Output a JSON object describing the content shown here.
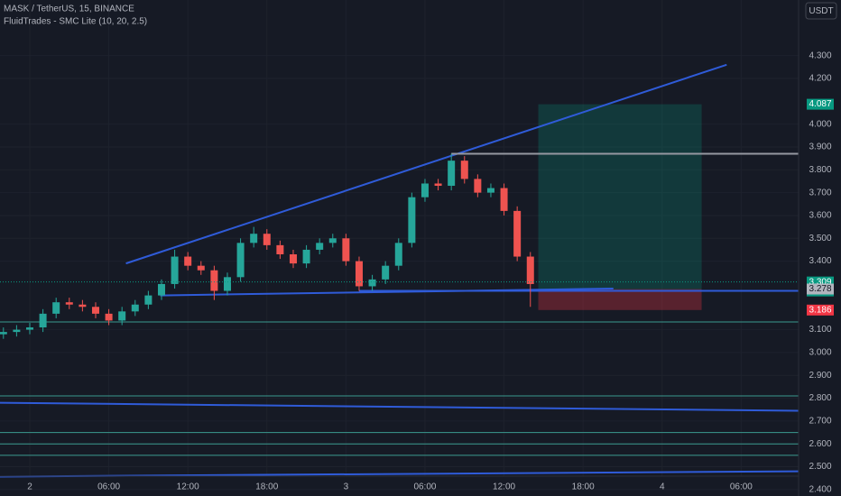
{
  "header": {
    "symbol": "MASK / TetherUS, 15, BINANCE",
    "indicator": "FluidTrades - SMC Lite  (10, 20, 2.5)",
    "currency": "USDT"
  },
  "chart_data": {
    "type": "candlestick",
    "x": [
      -2,
      -1,
      0,
      1,
      2,
      3,
      4,
      5,
      6,
      7,
      8,
      9,
      10,
      11,
      12,
      13,
      14,
      15,
      16,
      17,
      18,
      19,
      20,
      21,
      22,
      23,
      24,
      25,
      26,
      27,
      28,
      29,
      30,
      31,
      32,
      33,
      34,
      35,
      36,
      37,
      38
    ],
    "open": [
      3.08,
      3.09,
      3.1,
      3.11,
      3.17,
      3.22,
      3.21,
      3.2,
      3.17,
      3.14,
      3.18,
      3.21,
      3.25,
      3.3,
      3.42,
      3.38,
      3.36,
      3.27,
      3.33,
      3.48,
      3.52,
      3.47,
      3.43,
      3.39,
      3.45,
      3.48,
      3.5,
      3.4,
      3.29,
      3.32,
      3.38,
      3.48,
      3.68,
      3.74,
      3.73,
      3.84,
      3.76,
      3.7,
      3.72,
      3.62,
      3.42
    ],
    "high": [
      3.11,
      3.12,
      3.13,
      3.19,
      3.24,
      3.24,
      3.23,
      3.22,
      3.19,
      3.2,
      3.23,
      3.27,
      3.32,
      3.45,
      3.44,
      3.4,
      3.38,
      3.35,
      3.5,
      3.55,
      3.54,
      3.49,
      3.45,
      3.47,
      3.5,
      3.52,
      3.52,
      3.42,
      3.34,
      3.4,
      3.5,
      3.7,
      3.76,
      3.76,
      3.87,
      3.86,
      3.78,
      3.74,
      3.74,
      3.64,
      3.44
    ],
    "low": [
      3.06,
      3.07,
      3.08,
      3.09,
      3.15,
      3.19,
      3.18,
      3.15,
      3.12,
      3.12,
      3.16,
      3.19,
      3.23,
      3.28,
      3.36,
      3.34,
      3.23,
      3.25,
      3.31,
      3.46,
      3.45,
      3.41,
      3.37,
      3.37,
      3.43,
      3.46,
      3.38,
      3.27,
      3.27,
      3.3,
      3.36,
      3.46,
      3.66,
      3.71,
      3.71,
      3.74,
      3.68,
      3.68,
      3.6,
      3.4,
      3.2
    ],
    "close": [
      3.09,
      3.1,
      3.11,
      3.17,
      3.22,
      3.21,
      3.2,
      3.17,
      3.14,
      3.18,
      3.21,
      3.25,
      3.3,
      3.42,
      3.38,
      3.36,
      3.27,
      3.33,
      3.48,
      3.52,
      3.47,
      3.43,
      3.39,
      3.45,
      3.48,
      3.5,
      3.4,
      3.29,
      3.32,
      3.38,
      3.48,
      3.68,
      3.74,
      3.73,
      3.84,
      3.76,
      3.7,
      3.72,
      3.62,
      3.42,
      3.3
    ],
    "up_color": "#26a69a",
    "down_color": "#ef5350",
    "xlim": [
      -2.26,
      58.36
    ],
    "ylim": [
      2.3719,
      4.5434
    ],
    "xticks": [
      {
        "value": 0,
        "label": "2"
      },
      {
        "value": 6,
        "label": "06:00"
      },
      {
        "value": 12,
        "label": "12:00"
      },
      {
        "value": 18,
        "label": "18:00"
      },
      {
        "value": 24,
        "label": "3"
      },
      {
        "value": 30,
        "label": "06:00"
      },
      {
        "value": 36,
        "label": "12:00"
      },
      {
        "value": 42,
        "label": "18:00"
      },
      {
        "value": 48,
        "label": "4"
      },
      {
        "value": 54,
        "label": "06:00"
      }
    ],
    "yticks": [
      {
        "value": 4.3,
        "label": "4.300"
      },
      {
        "value": 4.2,
        "label": "4.200"
      },
      {
        "value": 4.0,
        "label": "4.000"
      },
      {
        "value": 3.9,
        "label": "3.900"
      },
      {
        "value": 3.8,
        "label": "3.800"
      },
      {
        "value": 3.7,
        "label": "3.700"
      },
      {
        "value": 3.6,
        "label": "3.600"
      },
      {
        "value": 3.5,
        "label": "3.500"
      },
      {
        "value": 3.4,
        "label": "3.400"
      },
      {
        "value": 3.1,
        "label": "3.100"
      },
      {
        "value": 3.0,
        "label": "3.000"
      },
      {
        "value": 2.9,
        "label": "2.900"
      },
      {
        "value": 2.8,
        "label": "2.800"
      },
      {
        "value": 2.7,
        "label": "2.700"
      },
      {
        "value": 2.6,
        "label": "2.600"
      },
      {
        "value": 2.5,
        "label": "2.500"
      },
      {
        "value": 2.4,
        "label": "2.400"
      }
    ],
    "grid": true,
    "levels": [
      {
        "value": 3.134,
        "color": "#3b9a8f"
      },
      {
        "value": 2.81,
        "color": "#3b9a8f"
      },
      {
        "value": 2.65,
        "color": "#3b9a8f"
      },
      {
        "value": 2.6,
        "color": "#3b9a8f"
      },
      {
        "value": 2.55,
        "color": "#3b9a8f"
      }
    ],
    "trendlines": [
      {
        "x": [
          7.3,
          52.9
        ],
        "y": [
          3.39,
          4.26
        ],
        "color": "#2f5bd8"
      },
      {
        "x": [
          9.9,
          44.3
        ],
        "y": [
          3.25,
          3.28
        ],
        "color": "#2f5bd8"
      },
      {
        "x": [
          -2.26,
          58.36
        ],
        "y": [
          2.78,
          2.745
        ],
        "color": "#2f5bd8"
      },
      {
        "x": [
          -2.26,
          58.36
        ],
        "y": [
          2.457,
          2.48
        ],
        "color": "#2f5bd8"
      },
      {
        "x": [
          32,
          58.36
        ],
        "y": [
          3.87,
          3.87
        ],
        "color": "#9598a1"
      },
      {
        "x": [
          25,
          58.36
        ],
        "y": [
          3.27,
          3.27
        ],
        "color": "#2f5bd8"
      }
    ],
    "position": {
      "x": [
        38.6,
        51
      ],
      "target": 4.087,
      "entry": 3.278,
      "stop": 3.186
    },
    "price_tags": [
      {
        "value": 4.087,
        "color": "#089981"
      },
      {
        "value": 3.309,
        "color": "#089981",
        "countdown": "12:24"
      },
      {
        "value": 3.278,
        "color": "#b2b5be"
      },
      {
        "value": 3.186,
        "color": "#f23645"
      }
    ]
  }
}
